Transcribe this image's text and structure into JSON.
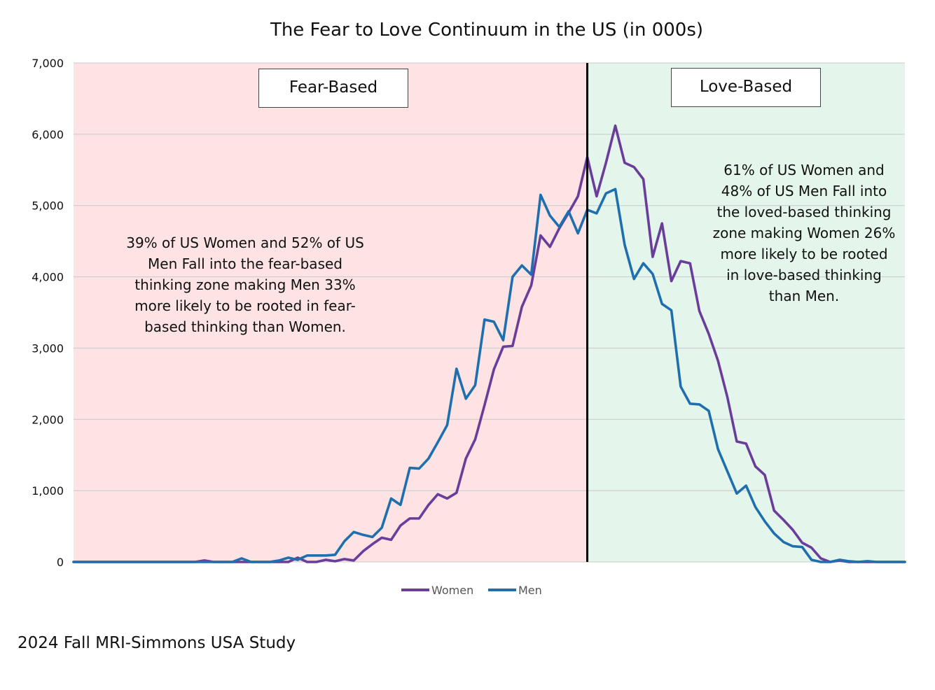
{
  "chart_data": {
    "type": "line",
    "title": "The Fear to Love Continuum in the US (in 000s)",
    "ylim": [
      0,
      7000
    ],
    "yticks": [
      0,
      1000,
      2000,
      3000,
      4000,
      5000,
      6000,
      7000
    ],
    "ytick_labels": [
      "0",
      "1,000",
      "2,000",
      "3,000",
      "4,000",
      "5,000",
      "6,000",
      "7,000"
    ],
    "xlim": [
      0,
      89
    ],
    "divider_x": 55,
    "grid": true,
    "legend_position": "bottom-center",
    "series": [
      {
        "name": "Women",
        "color": "#6a3d9a",
        "values": [
          0,
          0,
          0,
          0,
          0,
          0,
          0,
          0,
          0,
          0,
          0,
          0,
          0,
          0,
          20,
          0,
          0,
          0,
          0,
          0,
          0,
          0,
          0,
          0,
          60,
          0,
          0,
          30,
          10,
          40,
          20,
          150,
          250,
          340,
          310,
          510,
          610,
          610,
          800,
          950,
          890,
          970,
          1450,
          1720,
          2200,
          2700,
          3020,
          3030,
          3580,
          3880,
          4580,
          4420,
          4680,
          4900,
          5130,
          5680,
          5130,
          5600,
          6120,
          5600,
          5540,
          5370,
          4280,
          4750,
          3940,
          4220,
          4190,
          3520,
          3200,
          2820,
          2310,
          1690,
          1660,
          1340,
          1220,
          720,
          590,
          450,
          270,
          200,
          50,
          0,
          20,
          0,
          0,
          0,
          0,
          0,
          0,
          0
        ]
      },
      {
        "name": "Men",
        "color": "#1f6fae",
        "values": [
          0,
          0,
          0,
          0,
          0,
          0,
          0,
          0,
          0,
          0,
          0,
          0,
          0,
          0,
          0,
          0,
          0,
          0,
          50,
          0,
          0,
          0,
          20,
          60,
          30,
          90,
          90,
          90,
          100,
          290,
          420,
          380,
          350,
          480,
          890,
          800,
          1320,
          1310,
          1450,
          1680,
          1920,
          2710,
          2290,
          2480,
          3400,
          3370,
          3110,
          4000,
          4160,
          4030,
          5150,
          4860,
          4700,
          4920,
          4610,
          4940,
          4890,
          5170,
          5230,
          4450,
          3970,
          4190,
          4040,
          3620,
          3530,
          2460,
          2220,
          2210,
          2120,
          1580,
          1270,
          960,
          1070,
          770,
          570,
          400,
          280,
          220,
          210,
          30,
          0,
          0,
          30,
          10,
          0,
          10,
          0,
          0,
          0,
          0
        ]
      }
    ],
    "zones": [
      {
        "label": "Fear-Based",
        "color": "#fde3e3",
        "note": [
          "39% of US Women and 52% of US",
          "Men Fall into the fear-based",
          "thinking zone making Men 33%",
          "more likely to be rooted in fear-",
          "based thinking than Women."
        ]
      },
      {
        "label": "Love-Based",
        "color": "#e4f5ec",
        "note": [
          "61% of US Women and",
          "48% of US Men Fall into",
          "the loved-based thinking",
          "zone making Women 26%",
          "more likely to be rooted",
          "in love-based thinking",
          "than Men."
        ]
      }
    ],
    "source": "2024 Fall MRI-Simmons USA Study"
  }
}
